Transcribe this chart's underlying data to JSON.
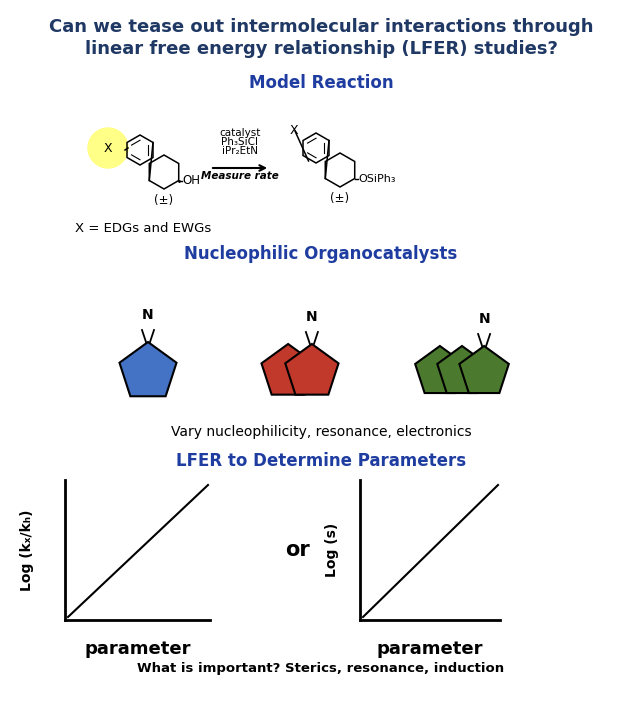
{
  "title_line1": "Can we tease out intermolecular interactions through",
  "title_line2": "linear free energy relationship (LFER) studies?",
  "section1_title": "Model Reaction",
  "section2_title": "Nucleophilic Organocatalysts",
  "section3_title": "LFER to Determine Parameters",
  "x_label": "X = EDGs and EWGs",
  "vary_text": "Vary nucleophilicity, resonance, electronics",
  "bottom_text": "What is important? Sterics, resonance, induction",
  "measure_rate": "Measure rate",
  "or_text": "or",
  "log_kx_kh": "Log (kₓ/kₕ)",
  "log_s": "Log (s)",
  "parameter": "parameter",
  "blue_color": "#4472C4",
  "red_color": "#C0392B",
  "green_color": "#4B7A2E",
  "title_blue": "#1F3864",
  "section_blue": "#1F3DA0",
  "background": "#FFFFFF",
  "yellow_circle": "#FFFF88"
}
